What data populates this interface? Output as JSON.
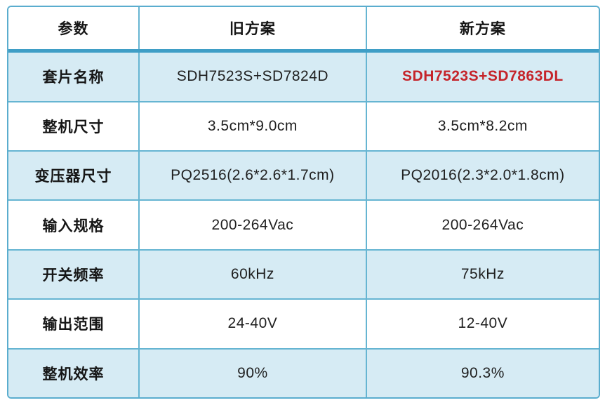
{
  "table": {
    "columns": {
      "param": "参数",
      "old": "旧方案",
      "new": "新方案"
    },
    "rows": [
      {
        "param": "套片名称",
        "old": "SDH7523S+SD7824D",
        "new": "SDH7523S+SD7863DL",
        "new_highlight": true
      },
      {
        "param": "整机尺寸",
        "old": "3.5cm*9.0cm",
        "new": "3.5cm*8.2cm"
      },
      {
        "param": "变压器尺寸",
        "old": "PQ2516(2.6*2.6*1.7cm)",
        "new": "PQ2016(2.3*2.0*1.8cm)"
      },
      {
        "param": "输入规格",
        "old": "200-264Vac",
        "new": "200-264Vac"
      },
      {
        "param": "开关频率",
        "old": "60kHz",
        "new": "75kHz"
      },
      {
        "param": "输出范围",
        "old": "24-40V",
        "new": "12-40V"
      },
      {
        "param": "整机效率",
        "old": "90%",
        "new": "90.3%"
      }
    ],
    "colors": {
      "row_alt_background": "#d6ebf4",
      "row_background": "#ffffff",
      "border": "#5aadce",
      "inner_border": "#66b5d2",
      "header_underline": "#3f9ec6",
      "text": "#1f1f1f",
      "highlight_text": "#c5242a"
    }
  }
}
